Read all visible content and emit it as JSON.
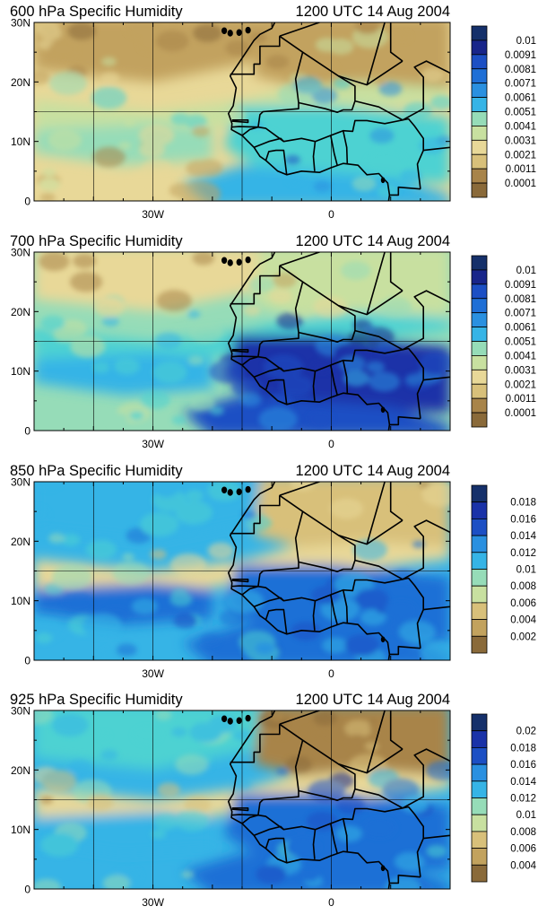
{
  "panels": [
    {
      "level_title": "600 hPa Specific Humidity",
      "time_title": "1200 UTC 14 Aug 2004",
      "y_ticks": [
        "30N",
        "20N",
        "10N",
        "0"
      ],
      "x_ticks": [
        "30W",
        "0"
      ],
      "colorbar_labels": [
        "0.01",
        "0.0091",
        "0.0081",
        "0.0071",
        "0.0061",
        "0.0051",
        "0.0041",
        "0.0031",
        "0.0021",
        "0.0011",
        "0.0001"
      ],
      "field_levels": {
        "sahara_north": 0.0018,
        "saharan_band": 0.0036,
        "atlantic_south": 0.0022,
        "atlantic_north": 0.0012,
        "sahel": 0.0052,
        "gulf_coast": 0.0062
      }
    },
    {
      "level_title": "700 hPa Specific Humidity",
      "time_title": "1200 UTC 14 Aug 2004",
      "y_ticks": [
        "30N",
        "20N",
        "10N",
        "0"
      ],
      "x_ticks": [
        "30W",
        "0"
      ],
      "colorbar_labels": [
        "0.01",
        "0.0091",
        "0.0081",
        "0.0071",
        "0.0061",
        "0.0051",
        "0.0041",
        "0.0031",
        "0.0021",
        "0.0011",
        "0.0001"
      ],
      "field_levels": {
        "sahara_north": 0.0032,
        "saharan_band": 0.0052,
        "atlantic_south": 0.0042,
        "atlantic_north": 0.0022,
        "sahel": 0.0086,
        "gulf_coast": 0.0079
      }
    },
    {
      "level_title": "850 hPa Specific Humidity",
      "time_title": "1200 UTC 14 Aug 2004",
      "y_ticks": [
        "30N",
        "20N",
        "10N",
        "0"
      ],
      "x_ticks": [
        "30W",
        "0"
      ],
      "colorbar_labels": [
        "0.018",
        "0.016",
        "0.014",
        "0.012",
        "0.01",
        "0.008",
        "0.006",
        "0.004",
        "0.002"
      ],
      "field_levels": {
        "sahara_north": 0.005,
        "saharan_band": 0.007,
        "atlantic_south": 0.012,
        "atlantic_north": 0.011,
        "sahel": 0.014,
        "gulf_coast": 0.013
      }
    },
    {
      "level_title": "925 hPa Specific Humidity",
      "time_title": "1200 UTC 14 Aug 2004",
      "y_ticks": [
        "30N",
        "20N",
        "10N",
        "0"
      ],
      "x_ticks": [
        "30W",
        "0"
      ],
      "colorbar_labels": [
        "0.02",
        "0.018",
        "0.016",
        "0.014",
        "0.012",
        "0.01",
        "0.008",
        "0.006",
        "0.004"
      ],
      "field_levels": {
        "sahara_north": 0.005,
        "saharan_band": 0.008,
        "atlantic_south": 0.013,
        "atlantic_north": 0.012,
        "sahel": 0.016,
        "gulf_coast": 0.015
      }
    }
  ],
  "palette": [
    "#8a6a3a",
    "#a8844a",
    "#c2a25e",
    "#d8c07a",
    "#e8d898",
    "#c8e0a0",
    "#96dcb8",
    "#4ed2d2",
    "#36b4e6",
    "#2a90e0",
    "#1f6fd6",
    "#1c4fc4",
    "#1a32a8",
    "#18258a",
    "#15306a"
  ],
  "map_style": {
    "country_borders": "#000000",
    "lat_lon_grid": "#000000"
  }
}
